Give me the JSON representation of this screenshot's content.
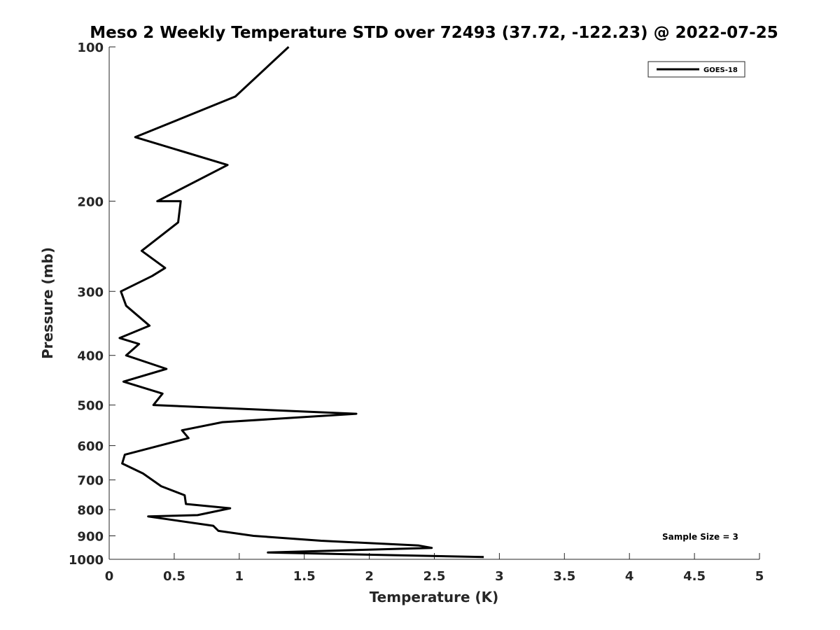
{
  "chart_data": {
    "type": "line",
    "title": "Meso 2 Weekly Temperature STD over 72493 (37.72, -122.23) @ 2022-07-25",
    "xlabel": "Temperature (K)",
    "ylabel": "Pressure (mb)",
    "xlim": [
      0,
      5
    ],
    "ylim": [
      100,
      1000
    ],
    "y_scale": "log",
    "y_reversed": true,
    "x_ticks": [
      "0",
      "0.5",
      "1",
      "1.5",
      "2",
      "2.5",
      "3",
      "3.5",
      "4",
      "4.5",
      "5"
    ],
    "x_tick_values": [
      0,
      0.5,
      1,
      1.5,
      2,
      2.5,
      3,
      3.5,
      4,
      4.5,
      5
    ],
    "y_ticks": [
      "100",
      "200",
      "300",
      "400",
      "500",
      "600",
      "700",
      "800",
      "900",
      "1000"
    ],
    "y_tick_values": [
      100,
      200,
      300,
      400,
      500,
      600,
      700,
      800,
      900,
      1000
    ],
    "grid": false,
    "legend_position": "top-right",
    "annotation": "Sample Size = 3",
    "series": [
      {
        "name": "GOES-18",
        "color": "#000000",
        "points": [
          [
            1.38,
            100
          ],
          [
            0.97,
            125
          ],
          [
            0.2,
            150
          ],
          [
            0.91,
            170
          ],
          [
            0.37,
            200
          ],
          [
            0.55,
            200
          ],
          [
            0.53,
            220
          ],
          [
            0.25,
            250
          ],
          [
            0.43,
            270
          ],
          [
            0.33,
            280
          ],
          [
            0.09,
            300
          ],
          [
            0.13,
            320
          ],
          [
            0.31,
            350
          ],
          [
            0.08,
            370
          ],
          [
            0.23,
            380
          ],
          [
            0.13,
            400
          ],
          [
            0.44,
            425
          ],
          [
            0.11,
            450
          ],
          [
            0.41,
            475
          ],
          [
            0.34,
            500
          ],
          [
            1.9,
            520
          ],
          [
            0.87,
            540
          ],
          [
            0.56,
            560
          ],
          [
            0.61,
            580
          ],
          [
            0.12,
            625
          ],
          [
            0.1,
            650
          ],
          [
            0.26,
            680
          ],
          [
            0.4,
            720
          ],
          [
            0.58,
            750
          ],
          [
            0.59,
            780
          ],
          [
            0.93,
            795
          ],
          [
            0.68,
            820
          ],
          [
            0.3,
            825
          ],
          [
            0.8,
            860
          ],
          [
            0.84,
            880
          ],
          [
            1.11,
            900
          ],
          [
            1.63,
            920
          ],
          [
            2.38,
            940
          ],
          [
            2.48,
            950
          ],
          [
            1.22,
            970
          ],
          [
            2.88,
            990
          ]
        ]
      }
    ]
  }
}
